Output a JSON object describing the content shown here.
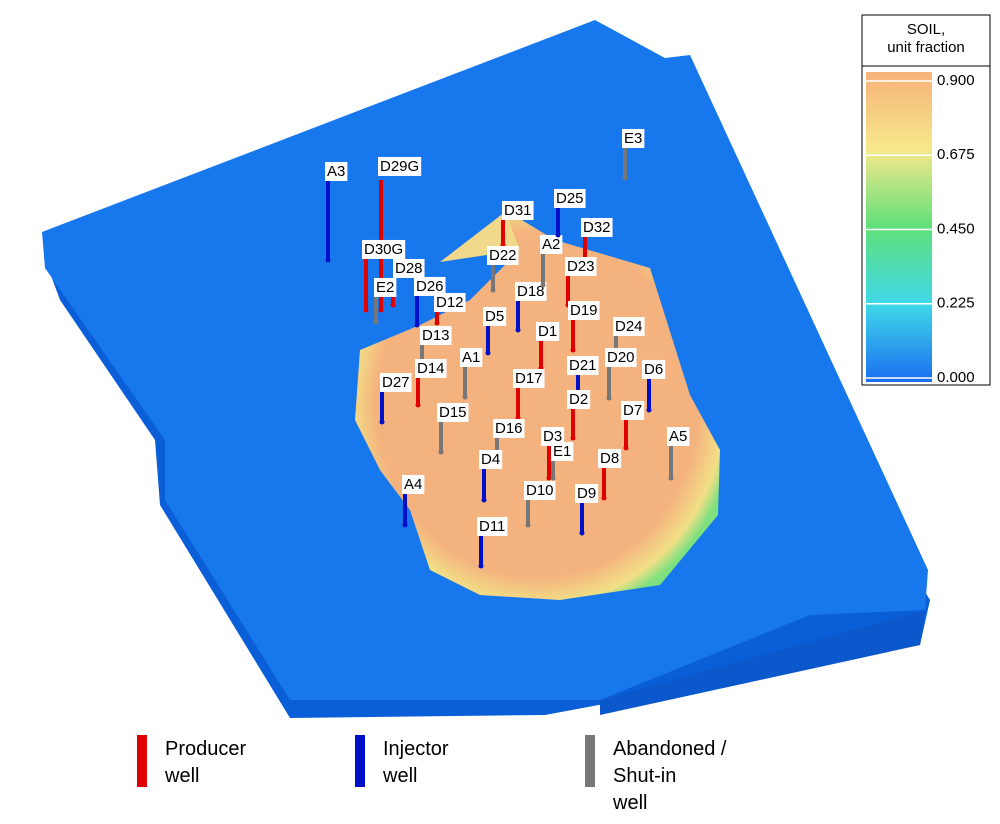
{
  "colorbar": {
    "title": [
      "SOIL,",
      "unit fraction"
    ],
    "ticks": [
      {
        "value": 0.9,
        "label": "0.900"
      },
      {
        "value": 0.675,
        "label": "0.675"
      },
      {
        "value": 0.45,
        "label": "0.450"
      },
      {
        "value": 0.225,
        "label": "0.225"
      },
      {
        "value": 0,
        "label": "0.000"
      }
    ]
  },
  "legend": [
    {
      "type": "producer",
      "color": "#e00000",
      "lines": [
        "Producer",
        "well"
      ]
    },
    {
      "type": "injector",
      "color": "#0010c8",
      "lines": [
        "Injector",
        "well"
      ]
    },
    {
      "type": "abandoned",
      "color": "#777777",
      "lines": [
        "Abandoned /",
        "Shut-in",
        "well"
      ]
    }
  ],
  "wells": [
    {
      "name": "A3",
      "type": "injector"
    },
    {
      "name": "D29G",
      "type": "producer"
    },
    {
      "name": "D30G",
      "type": "producer"
    },
    {
      "name": "D28",
      "type": "producer"
    },
    {
      "name": "E2",
      "type": "abandoned"
    },
    {
      "name": "D26",
      "type": "injector"
    },
    {
      "name": "D12",
      "type": "producer"
    },
    {
      "name": "D13",
      "type": "abandoned"
    },
    {
      "name": "D14",
      "type": "producer"
    },
    {
      "name": "D27",
      "type": "injector"
    },
    {
      "name": "A1",
      "type": "abandoned"
    },
    {
      "name": "D5",
      "type": "injector"
    },
    {
      "name": "D18",
      "type": "injector"
    },
    {
      "name": "D31",
      "type": "producer"
    },
    {
      "name": "D22",
      "type": "abandoned"
    },
    {
      "name": "A2",
      "type": "abandoned"
    },
    {
      "name": "D25",
      "type": "injector"
    },
    {
      "name": "D32",
      "type": "producer"
    },
    {
      "name": "D23",
      "type": "producer"
    },
    {
      "name": "D19",
      "type": "producer"
    },
    {
      "name": "D1",
      "type": "producer"
    },
    {
      "name": "D24",
      "type": "abandoned"
    },
    {
      "name": "D21",
      "type": "injector"
    },
    {
      "name": "D20",
      "type": "abandoned"
    },
    {
      "name": "D6",
      "type": "injector"
    },
    {
      "name": "D17",
      "type": "producer"
    },
    {
      "name": "D15",
      "type": "abandoned"
    },
    {
      "name": "D16",
      "type": "abandoned"
    },
    {
      "name": "D2",
      "type": "producer"
    },
    {
      "name": "D7",
      "type": "producer"
    },
    {
      "name": "A5",
      "type": "abandoned"
    },
    {
      "name": "D3",
      "type": "producer"
    },
    {
      "name": "E1",
      "type": "abandoned"
    },
    {
      "name": "D4",
      "type": "injector"
    },
    {
      "name": "D8",
      "type": "producer"
    },
    {
      "name": "D10",
      "type": "abandoned"
    },
    {
      "name": "D9",
      "type": "injector"
    },
    {
      "name": "A4",
      "type": "injector"
    },
    {
      "name": "D11",
      "type": "injector"
    },
    {
      "name": "E3",
      "type": "abandoned"
    }
  ]
}
